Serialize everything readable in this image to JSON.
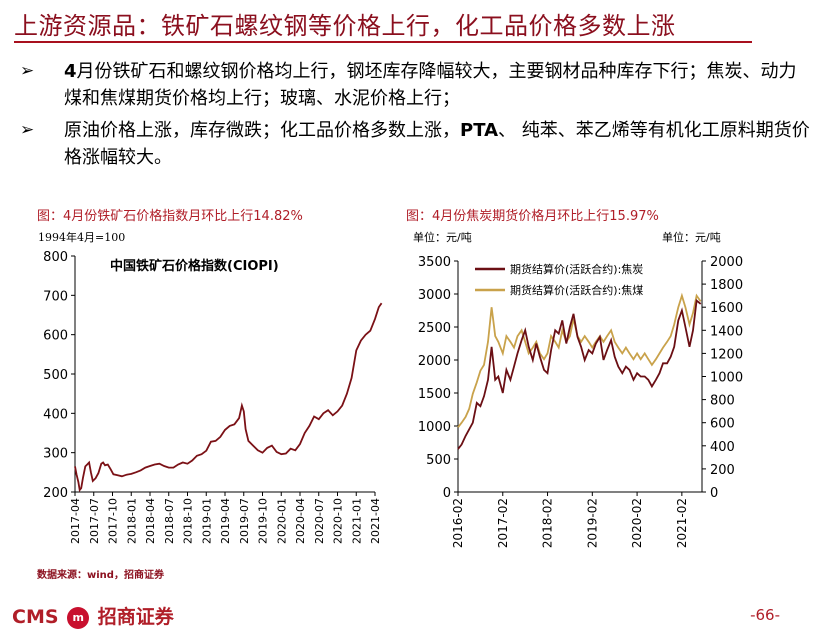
{
  "header": {
    "title": "上游资源品：铁矿石螺纹钢等价格上行，化工品价格多数上涨"
  },
  "bullets": [
    {
      "prefix": "4",
      "text": "月份铁矿石和螺纹钢价格均上行，钢坯库存降幅较大，主要钢材品种库存下行；焦炭、动力煤和焦煤期货价格均上行；玻璃、水泥价格上行；"
    },
    {
      "text_a": "原油价格上涨，库存微跌；化工品价格多数上涨，",
      "bold": "PTA",
      "text_b": "、 纯苯、苯乙烯等有机化工原料期货价格涨幅较大。"
    }
  ],
  "arrow_glyph": "➢",
  "left_panel": {
    "title": "图：4月份铁矿石价格指数月环比上行14.82%",
    "base_note": "1994年4月=100"
  },
  "right_panel": {
    "title": "图：4月份焦炭期货价格月环比上行15.97%",
    "unit_left": "单位：元/吨",
    "unit_right": "单位：元/吨"
  },
  "chart_data": [
    {
      "type": "line",
      "title": "中国铁矿石价格指数(CIOPI)",
      "color": "#7b1116",
      "ylim": [
        200,
        800
      ],
      "yticks": [
        200,
        300,
        400,
        500,
        600,
        700,
        800
      ],
      "xticks": [
        "2017-04",
        "2017-07",
        "2017-10",
        "2018-01",
        "2018-04",
        "2018-07",
        "2018-10",
        "2019-01",
        "2019-04",
        "2019-07",
        "2019-10",
        "2020-01",
        "2020-04",
        "2020-07",
        "2020-10",
        "2021-01",
        "2021-04"
      ],
      "series": [
        {
          "name": "中国铁矿石价格指数(CIOPI)",
          "points": [
            [
              0,
              265
            ],
            [
              0.08,
              245
            ],
            [
              0.18,
              225
            ],
            [
              0.25,
              205
            ],
            [
              0.33,
              210
            ],
            [
              0.42,
              235
            ],
            [
              0.55,
              265
            ],
            [
              0.65,
              270
            ],
            [
              0.75,
              275
            ],
            [
              0.85,
              250
            ],
            [
              0.95,
              228
            ],
            [
              1.1,
              235
            ],
            [
              1.25,
              248
            ],
            [
              1.4,
              272
            ],
            [
              1.5,
              275
            ],
            [
              1.6,
              268
            ],
            [
              1.75,
              270
            ],
            [
              1.9,
              258
            ],
            [
              2.05,
              245
            ],
            [
              2.25,
              243
            ],
            [
              2.5,
              240
            ],
            [
              2.75,
              244
            ],
            [
              3.0,
              246
            ],
            [
              3.25,
              250
            ],
            [
              3.5,
              255
            ],
            [
              3.75,
              262
            ],
            [
              4.0,
              266
            ],
            [
              4.25,
              270
            ],
            [
              4.5,
              272
            ],
            [
              4.75,
              266
            ],
            [
              5.0,
              262
            ],
            [
              5.25,
              262
            ],
            [
              5.5,
              270
            ],
            [
              5.75,
              275
            ],
            [
              6.0,
              272
            ],
            [
              6.25,
              280
            ],
            [
              6.5,
              292
            ],
            [
              6.75,
              296
            ],
            [
              7.0,
              305
            ],
            [
              7.25,
              328
            ],
            [
              7.5,
              330
            ],
            [
              7.75,
              340
            ],
            [
              8.0,
              358
            ],
            [
              8.25,
              368
            ],
            [
              8.5,
              372
            ],
            [
              8.75,
              388
            ],
            [
              8.9,
              420
            ],
            [
              9.0,
              405
            ],
            [
              9.1,
              360
            ],
            [
              9.25,
              330
            ],
            [
              9.5,
              318
            ],
            [
              9.75,
              306
            ],
            [
              10.0,
              300
            ],
            [
              10.25,
              312
            ],
            [
              10.5,
              318
            ],
            [
              10.75,
              302
            ],
            [
              11.0,
              296
            ],
            [
              11.25,
              298
            ],
            [
              11.5,
              310
            ],
            [
              11.75,
              306
            ],
            [
              12.0,
              322
            ],
            [
              12.25,
              350
            ],
            [
              12.5,
              368
            ],
            [
              12.75,
              392
            ],
            [
              13.0,
              385
            ],
            [
              13.25,
              400
            ],
            [
              13.5,
              408
            ],
            [
              13.75,
              395
            ],
            [
              14.0,
              405
            ],
            [
              14.25,
              420
            ],
            [
              14.5,
              450
            ],
            [
              14.75,
              490
            ],
            [
              15.0,
              560
            ],
            [
              15.25,
              585
            ],
            [
              15.5,
              600
            ],
            [
              15.75,
              610
            ],
            [
              16.0,
              640
            ],
            [
              16.2,
              670
            ],
            [
              16.35,
              680
            ]
          ]
        }
      ]
    },
    {
      "type": "line",
      "ylim_left": [
        0,
        3500
      ],
      "yticks_left": [
        0,
        500,
        1000,
        1500,
        2000,
        2500,
        3000,
        3500
      ],
      "ylim_right": [
        0,
        2000
      ],
      "yticks_right": [
        0,
        200,
        400,
        600,
        800,
        1000,
        1200,
        1400,
        1600,
        1800,
        2000
      ],
      "xticks": [
        "2016-02",
        "2017-02",
        "2018-02",
        "2019-02",
        "2020-02",
        "2021-02"
      ],
      "legend": [
        "期货结算价(活跃合约):焦炭",
        "期货结算价(活跃合约):焦煤"
      ],
      "series": [
        {
          "name": "期货结算价(活跃合约):焦炭",
          "axis": "left",
          "color": "#6b0f14",
          "points": [
            [
              0,
              650
            ],
            [
              0.08,
              720
            ],
            [
              0.17,
              850
            ],
            [
              0.25,
              950
            ],
            [
              0.33,
              1050
            ],
            [
              0.42,
              1350
            ],
            [
              0.5,
              1300
            ],
            [
              0.58,
              1450
            ],
            [
              0.67,
              1700
            ],
            [
              0.75,
              2200
            ],
            [
              0.8,
              1900
            ],
            [
              0.83,
              1700
            ],
            [
              0.9,
              1750
            ],
            [
              1.0,
              1500
            ],
            [
              1.08,
              1850
            ],
            [
              1.17,
              1700
            ],
            [
              1.25,
              1900
            ],
            [
              1.33,
              2100
            ],
            [
              1.42,
              2300
            ],
            [
              1.5,
              2450
            ],
            [
              1.58,
              2200
            ],
            [
              1.67,
              2000
            ],
            [
              1.75,
              2250
            ],
            [
              1.83,
              2050
            ],
            [
              1.92,
              1850
            ],
            [
              2.0,
              1800
            ],
            [
              2.08,
              2150
            ],
            [
              2.17,
              2450
            ],
            [
              2.25,
              2400
            ],
            [
              2.33,
              2600
            ],
            [
              2.42,
              2250
            ],
            [
              2.5,
              2500
            ],
            [
              2.58,
              2700
            ],
            [
              2.67,
              2350
            ],
            [
              2.75,
              2200
            ],
            [
              2.83,
              2000
            ],
            [
              2.92,
              2150
            ],
            [
              3.0,
              2100
            ],
            [
              3.08,
              2250
            ],
            [
              3.17,
              2350
            ],
            [
              3.25,
              2000
            ],
            [
              3.33,
              2150
            ],
            [
              3.42,
              2300
            ],
            [
              3.5,
              2050
            ],
            [
              3.58,
              1900
            ],
            [
              3.67,
              1800
            ],
            [
              3.75,
              1900
            ],
            [
              3.83,
              1850
            ],
            [
              3.92,
              1700
            ],
            [
              4.0,
              1800
            ],
            [
              4.08,
              1750
            ],
            [
              4.17,
              1750
            ],
            [
              4.25,
              1700
            ],
            [
              4.33,
              1600
            ],
            [
              4.42,
              1700
            ],
            [
              4.5,
              1800
            ],
            [
              4.58,
              1950
            ],
            [
              4.67,
              1950
            ],
            [
              4.75,
              2050
            ],
            [
              4.83,
              2200
            ],
            [
              4.92,
              2600
            ],
            [
              5.0,
              2750
            ],
            [
              5.08,
              2500
            ],
            [
              5.17,
              2200
            ],
            [
              5.25,
              2450
            ],
            [
              5.33,
              2900
            ],
            [
              5.42,
              2850
            ]
          ]
        },
        {
          "name": "期货结算价(活跃合约):焦煤",
          "axis": "right",
          "color": "#c9a24b",
          "points": [
            [
              0,
              560
            ],
            [
              0.08,
              600
            ],
            [
              0.17,
              650
            ],
            [
              0.25,
              720
            ],
            [
              0.33,
              850
            ],
            [
              0.42,
              950
            ],
            [
              0.5,
              1050
            ],
            [
              0.58,
              1100
            ],
            [
              0.67,
              1300
            ],
            [
              0.75,
              1600
            ],
            [
              0.8,
              1450
            ],
            [
              0.83,
              1350
            ],
            [
              0.9,
              1300
            ],
            [
              1.0,
              1200
            ],
            [
              1.08,
              1350
            ],
            [
              1.17,
              1300
            ],
            [
              1.25,
              1250
            ],
            [
              1.33,
              1350
            ],
            [
              1.42,
              1400
            ],
            [
              1.5,
              1300
            ],
            [
              1.58,
              1200
            ],
            [
              1.67,
              1250
            ],
            [
              1.75,
              1300
            ],
            [
              1.83,
              1200
            ],
            [
              1.92,
              1150
            ],
            [
              2.0,
              1200
            ],
            [
              2.08,
              1350
            ],
            [
              2.17,
              1300
            ],
            [
              2.25,
              1250
            ],
            [
              2.33,
              1400
            ],
            [
              2.42,
              1300
            ],
            [
              2.5,
              1350
            ],
            [
              2.58,
              1500
            ],
            [
              2.67,
              1350
            ],
            [
              2.75,
              1300
            ],
            [
              2.83,
              1350
            ],
            [
              2.92,
              1300
            ],
            [
              3.0,
              1250
            ],
            [
              3.08,
              1300
            ],
            [
              3.17,
              1350
            ],
            [
              3.25,
              1300
            ],
            [
              3.33,
              1350
            ],
            [
              3.42,
              1400
            ],
            [
              3.5,
              1300
            ],
            [
              3.58,
              1250
            ],
            [
              3.67,
              1200
            ],
            [
              3.75,
              1250
            ],
            [
              3.83,
              1200
            ],
            [
              3.92,
              1150
            ],
            [
              4.0,
              1200
            ],
            [
              4.08,
              1150
            ],
            [
              4.17,
              1200
            ],
            [
              4.25,
              1150
            ],
            [
              4.33,
              1100
            ],
            [
              4.42,
              1150
            ],
            [
              4.5,
              1200
            ],
            [
              4.58,
              1250
            ],
            [
              4.67,
              1300
            ],
            [
              4.75,
              1350
            ],
            [
              4.83,
              1450
            ],
            [
              4.92,
              1600
            ],
            [
              5.0,
              1700
            ],
            [
              5.08,
              1600
            ],
            [
              5.17,
              1450
            ],
            [
              5.25,
              1550
            ],
            [
              5.33,
              1700
            ],
            [
              5.42,
              1650
            ]
          ]
        }
      ]
    }
  ],
  "footer": {
    "source": "数据来源：wind，招商证券",
    "logo_text": "CMS",
    "logo_badge": "m",
    "logo_cn": "招商证券",
    "page": "-66-"
  }
}
